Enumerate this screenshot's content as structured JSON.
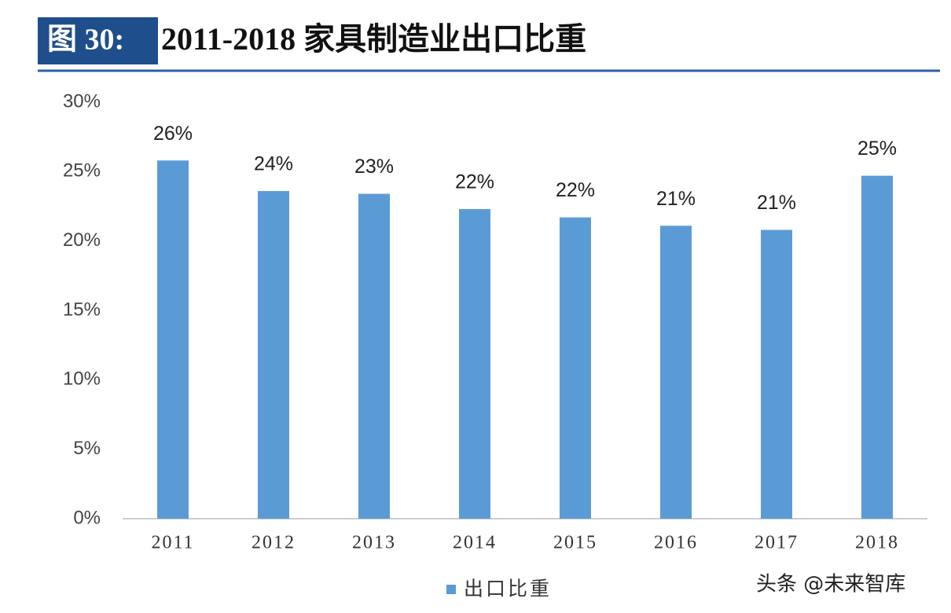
{
  "chart_data": {
    "type": "bar",
    "figure_label": "图 30:",
    "title": "2011-2018 家具制造业出口比重",
    "categories": [
      "2011",
      "2012",
      "2013",
      "2014",
      "2015",
      "2016",
      "2017",
      "2018"
    ],
    "series": [
      {
        "name": "出口比重",
        "color": "#5b9bd5",
        "values": [
          25.8,
          23.6,
          23.4,
          22.3,
          21.7,
          21.1,
          20.8,
          24.7
        ],
        "value_labels": [
          "26%",
          "24%",
          "23%",
          "22%",
          "22%",
          "21%",
          "21%",
          "25%"
        ]
      }
    ],
    "ylim": [
      0,
      30
    ],
    "yticks": [
      {
        "value": 0,
        "label": "0%"
      },
      {
        "value": 5,
        "label": "5%"
      },
      {
        "value": 10,
        "label": "10%"
      },
      {
        "value": 15,
        "label": "15%"
      },
      {
        "value": 20,
        "label": "20%"
      },
      {
        "value": 25,
        "label": "25%"
      },
      {
        "value": 30,
        "label": "30%"
      }
    ],
    "grid": false,
    "legend": "bottom"
  },
  "watermark": "头条 @未来智库"
}
